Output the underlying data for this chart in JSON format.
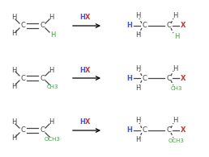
{
  "background_color": "#ffffff",
  "rows": [
    {
      "substituent": "H",
      "substituent_color": "#33aa33"
    },
    {
      "substituent": "CH3",
      "substituent_color": "#33aa33"
    },
    {
      "substituent": "OCH3",
      "substituent_color": "#33aa33"
    }
  ],
  "arrow_h_color": "#4455cc",
  "arrow_x_color": "#cc3333",
  "product_h_color": "#4455cc",
  "product_x_color": "#cc3333",
  "product_sub_color": "#33aa33",
  "atom_color": "#444444",
  "bond_color": "#444444",
  "figsize": [
    2.58,
    1.95
  ],
  "dpi": 100
}
